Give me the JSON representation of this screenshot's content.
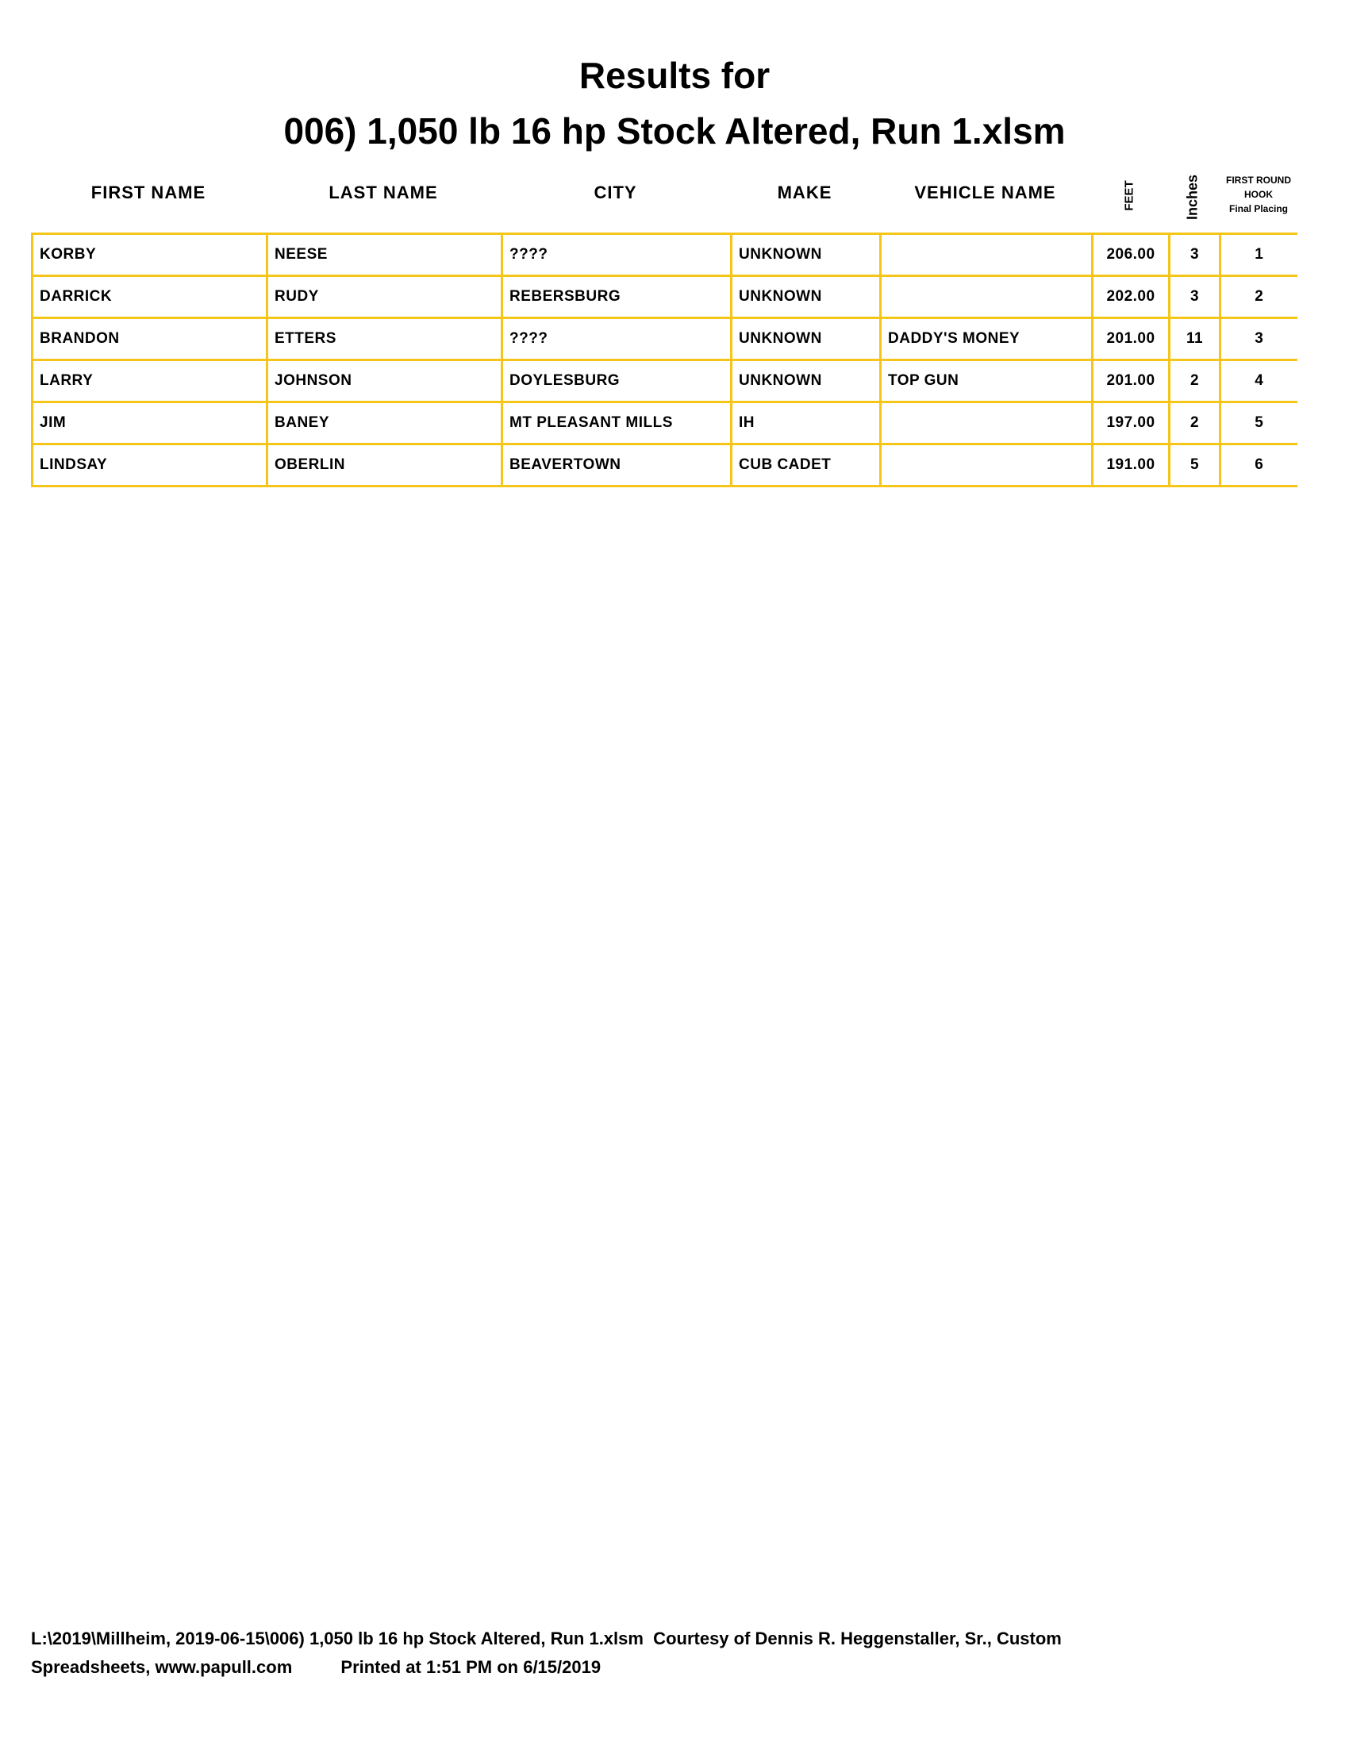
{
  "title_line1": "Results for",
  "title_line2": "006) 1,050 lb 16 hp Stock Altered, Run 1.xlsm",
  "headers": {
    "first_name": "FIRST NAME",
    "last_name": "LAST NAME",
    "city": "CITY",
    "make": "MAKE",
    "vehicle_name": "VEHICLE NAME",
    "feet": "FEET",
    "inches": "Inches",
    "placing_l1": "FIRST ROUND",
    "placing_l2": "HOOK",
    "placing_l3": "Final Placing"
  },
  "rows": [
    {
      "first": "KORBY",
      "last": "NEESE",
      "city": "????",
      "make": "UNKNOWN",
      "vehicle": "",
      "feet": "206.00",
      "inches": "3",
      "place": "1"
    },
    {
      "first": "DARRICK",
      "last": "RUDY",
      "city": "REBERSBURG",
      "make": "UNKNOWN",
      "vehicle": "",
      "feet": "202.00",
      "inches": "3",
      "place": "2"
    },
    {
      "first": "BRANDON",
      "last": "ETTERS",
      "city": "????",
      "make": "UNKNOWN",
      "vehicle": "DADDY'S MONEY",
      "feet": "201.00",
      "inches": "11",
      "place": "3"
    },
    {
      "first": "LARRY",
      "last": "JOHNSON",
      "city": "DOYLESBURG",
      "make": "UNKNOWN",
      "vehicle": "TOP GUN",
      "feet": "201.00",
      "inches": "2",
      "place": "4"
    },
    {
      "first": "JIM",
      "last": "BANEY",
      "city": "MT PLEASANT MILLS",
      "make": "IH",
      "vehicle": "",
      "feet": "197.00",
      "inches": "2",
      "place": "5"
    },
    {
      "first": "LINDSAY",
      "last": "OBERLIN",
      "city": "BEAVERTOWN",
      "make": "CUB CADET",
      "vehicle": "",
      "feet": "191.00",
      "inches": "5",
      "place": "6"
    }
  ],
  "border_color": "#F5C518",
  "footer_line1": "L:\\2019\\Millheim, 2019-06-15\\006) 1,050 lb 16 hp Stock Altered, Run 1.xlsm  Courtesy of Dennis R. Heggenstaller, Sr., Custom",
  "footer_line2": "Spreadsheets, www.papull.com          Printed at 1:51 PM on 6/15/2019"
}
